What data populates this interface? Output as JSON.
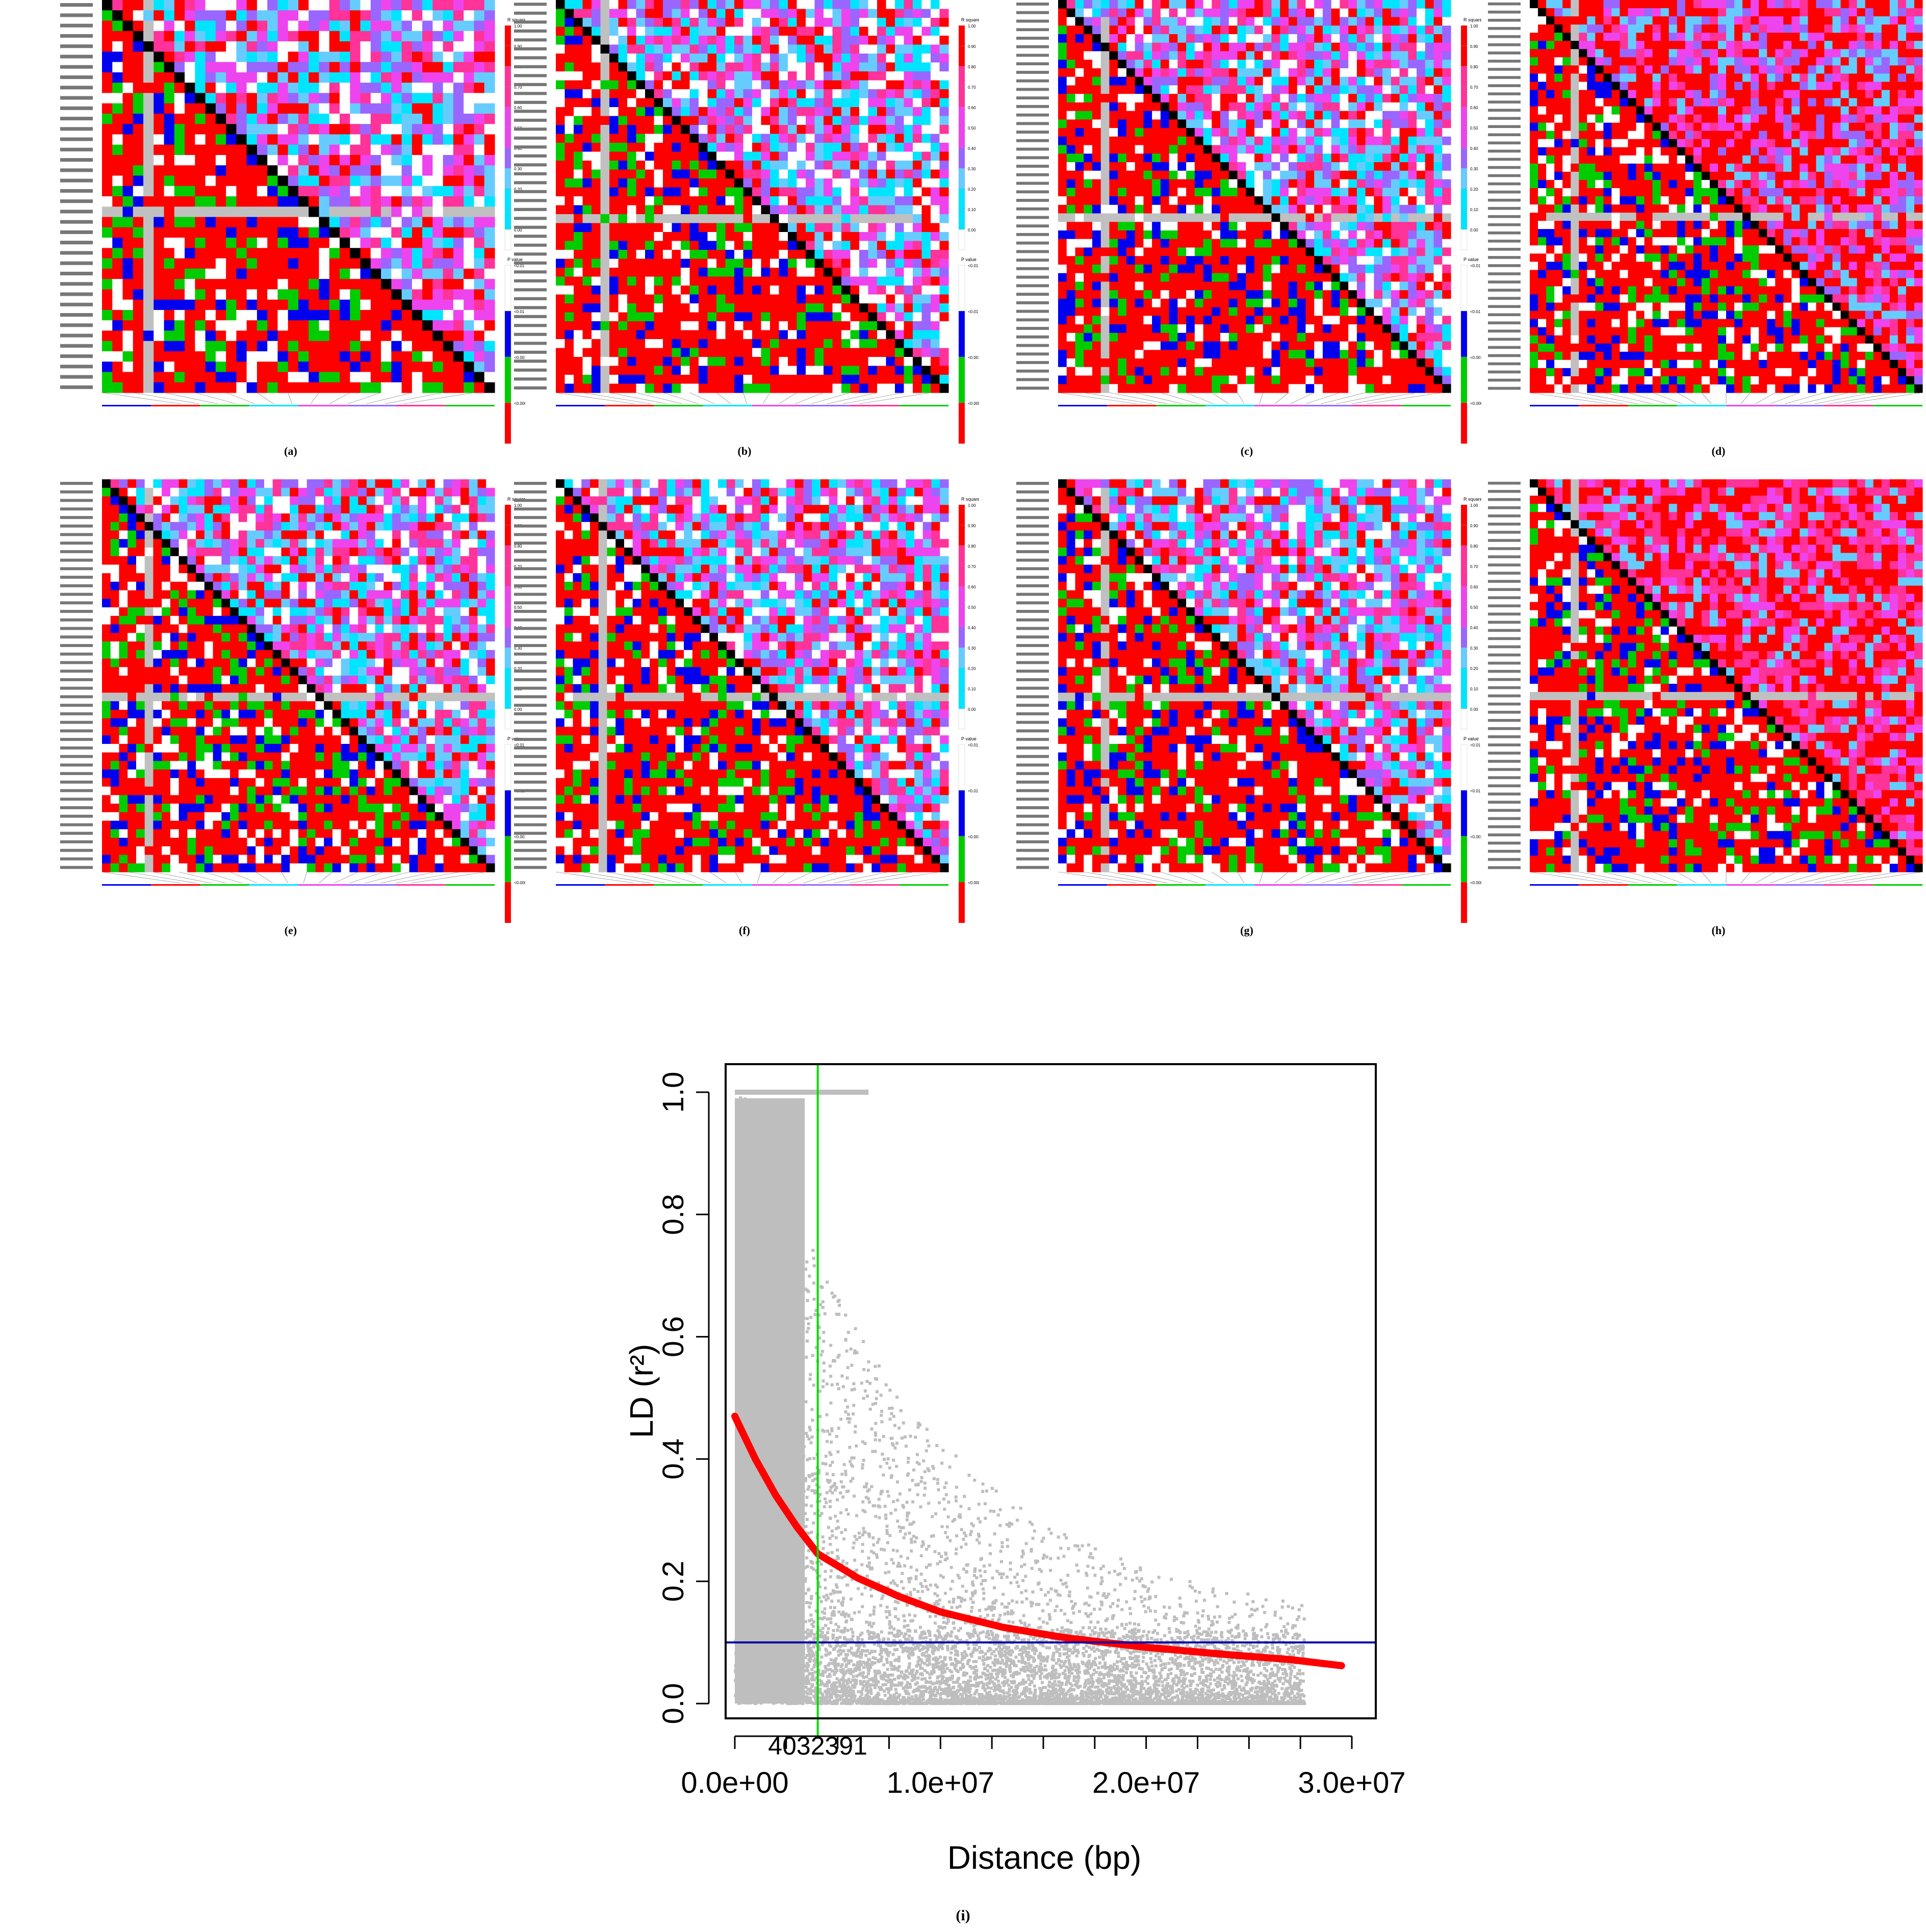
{
  "panels": [
    {
      "label": "(a)"
    },
    {
      "label": "(b)"
    },
    {
      "label": "(c)"
    },
    {
      "label": "(d)"
    },
    {
      "label": "(e)"
    },
    {
      "label": "(f)"
    },
    {
      "label": "(g)"
    },
    {
      "label": "(h)"
    }
  ],
  "legend": {
    "r2_title": "R squared",
    "r2_ticks": [
      "1.00",
      "0.90",
      "0.80",
      "0.70",
      "0.60",
      "0.50",
      "0.40",
      "0.30",
      "0.20",
      "0.10",
      "0.00"
    ],
    "p_title": "P value",
    "p_ticks": [
      "<0.01",
      "<0.01",
      "<0.001",
      "<0.0001"
    ]
  },
  "colors": {
    "red": "#ff0000",
    "pink": "#ff3399",
    "magenta": "#ee44ee",
    "violet": "#9966ff",
    "lightblue": "#66ccff",
    "cyan": "#00e5ff",
    "white": "#ffffff",
    "grey": "#c0c0c0",
    "blue": "#0000ee",
    "green": "#00cc00",
    "black": "#000000",
    "scatter": "#bebebe",
    "fit": "#ff0000",
    "threshold_line": "#0000aa",
    "critical_line": "#00dd00"
  },
  "chart_data": {
    "type": "scatter",
    "label": "(i)",
    "xlabel": "Distance (bp)",
    "ylabel": "LD (r²)",
    "xlim": [
      0,
      30000000
    ],
    "ylim": [
      0,
      1.0
    ],
    "x_ticks": [
      "0.0e+00",
      "1.0e+07",
      "2.0e+07",
      "3.0e+07"
    ],
    "y_ticks": [
      "0.0",
      "0.2",
      "0.4",
      "0.6",
      "0.8",
      "1.0"
    ],
    "threshold_r2": 0.1,
    "critical_distance": 4032391,
    "critical_distance_label": "4032391",
    "fit_curve": {
      "x": [
        0,
        1000000,
        2000000,
        3000000,
        4032391,
        6000000,
        8000000,
        10000000,
        13000000,
        16000000,
        20000000,
        24000000,
        27000000,
        29500000
      ],
      "y": [
        0.47,
        0.4,
        0.34,
        0.29,
        0.245,
        0.205,
        0.175,
        0.15,
        0.125,
        0.108,
        0.092,
        0.08,
        0.072,
        0.062
      ]
    }
  }
}
